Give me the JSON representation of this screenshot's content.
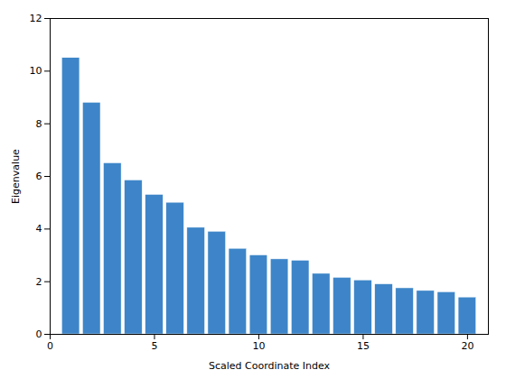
{
  "chart_data": {
    "type": "bar",
    "x": [
      1,
      2,
      3,
      4,
      5,
      6,
      7,
      8,
      9,
      10,
      11,
      12,
      13,
      14,
      15,
      16,
      17,
      18,
      19,
      20
    ],
    "values": [
      10.5,
      8.8,
      6.5,
      5.85,
      5.3,
      5.0,
      4.05,
      3.9,
      3.25,
      3.0,
      2.85,
      2.8,
      2.3,
      2.15,
      2.05,
      1.9,
      1.75,
      1.65,
      1.6,
      1.4
    ],
    "color": "#3d85c8",
    "xlabel": "Scaled Coordinate Index",
    "ylabel": "Eigenvalue",
    "xlim": [
      0,
      21
    ],
    "ylim": [
      0,
      12
    ],
    "xticks": [
      0,
      5,
      10,
      15,
      20
    ],
    "yticks": [
      0,
      2,
      4,
      6,
      8,
      10,
      12
    ],
    "grid": false
  }
}
